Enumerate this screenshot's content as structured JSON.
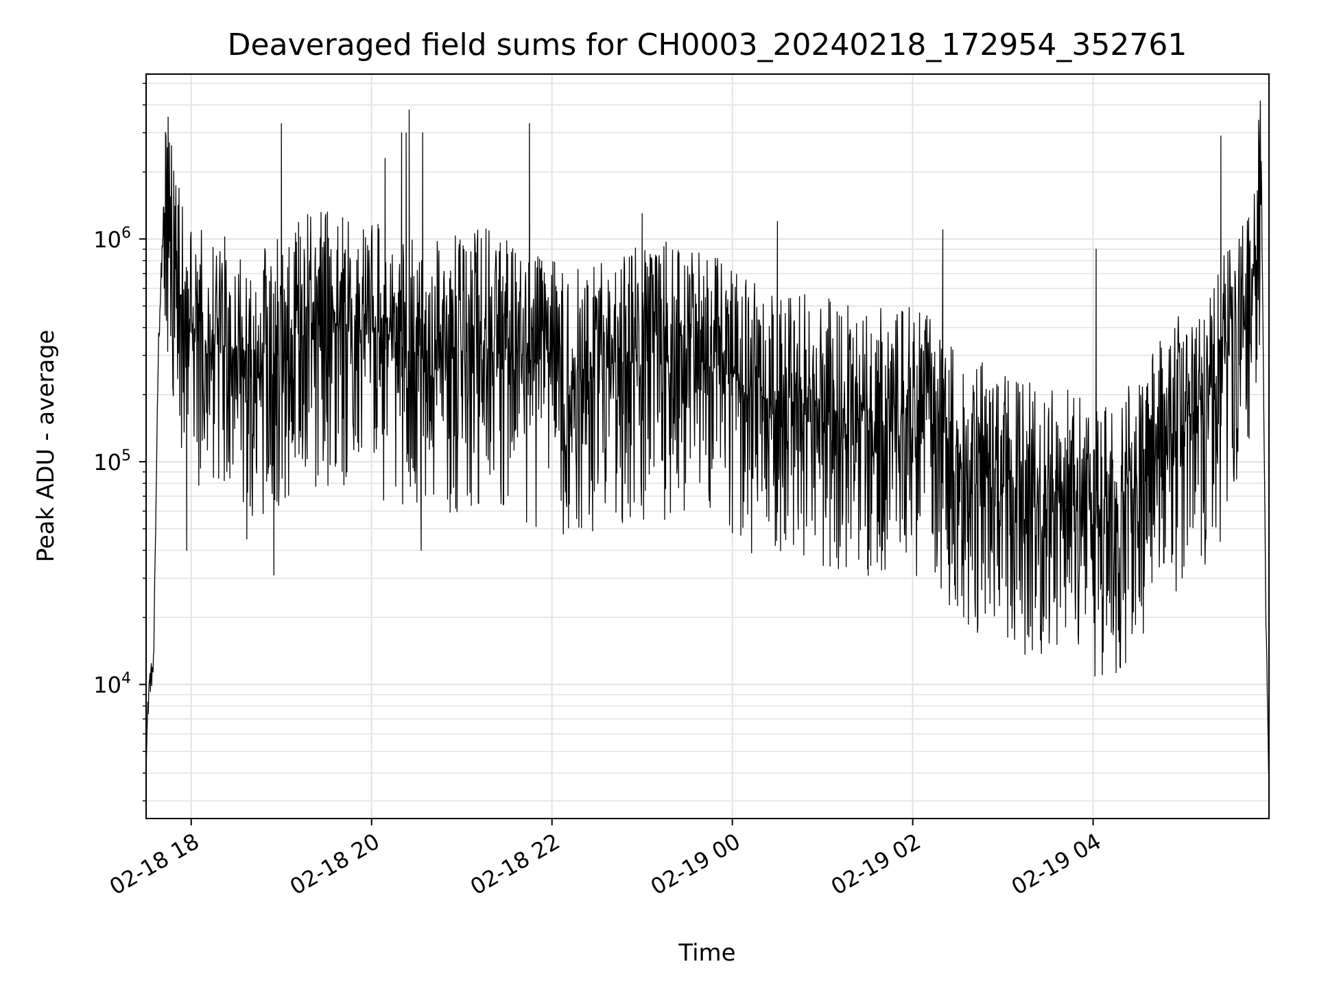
{
  "chart_data": {
    "type": "line",
    "title": "Deaveraged field sums for CH0003_20240218_172954_352761",
    "xlabel": "Time",
    "ylabel": "Peak ADU - average",
    "y_scale": "log",
    "ylim": [
      2500,
      5500000
    ],
    "xlim": [
      "2024-02-18 17:30",
      "2024-02-19 05:57"
    ],
    "x_ticks": [
      "02-18 18",
      "02-18 20",
      "02-18 22",
      "02-19 00",
      "02-19 02",
      "02-19 04"
    ],
    "x_tick_times": [
      "2024-02-18 18:00",
      "2024-02-18 20:00",
      "2024-02-18 22:00",
      "2024-02-19 00:00",
      "2024-02-19 02:00",
      "2024-02-19 04:00"
    ],
    "y_ticks": [
      {
        "base": "10",
        "exp": "4",
        "value": 10000
      },
      {
        "base": "10",
        "exp": "5",
        "value": 100000
      },
      {
        "base": "10",
        "exp": "6",
        "value": 1000000
      }
    ],
    "grid": true,
    "line_color": "#000000",
    "series": [
      {
        "x": [
          "2024-02-18 17:30",
          "2024-02-18 17:32",
          "2024-02-18 17:35",
          "2024-02-18 17:38",
          "2024-02-18 17:42",
          "2024-02-18 17:45",
          "2024-02-18 17:48",
          "2024-02-18 17:52",
          "2024-02-18 17:56",
          "2024-02-18 18:00",
          "2024-02-18 18:10",
          "2024-02-18 18:20",
          "2024-02-18 18:30",
          "2024-02-18 18:45",
          "2024-02-18 19:00",
          "2024-02-18 19:15",
          "2024-02-18 19:30",
          "2024-02-18 19:45",
          "2024-02-18 20:00",
          "2024-02-18 20:15",
          "2024-02-18 20:30",
          "2024-02-18 20:45",
          "2024-02-18 21:00",
          "2024-02-18 21:15",
          "2024-02-18 21:30",
          "2024-02-18 21:45",
          "2024-02-18 22:00",
          "2024-02-18 22:15",
          "2024-02-18 22:30",
          "2024-02-18 22:45",
          "2024-02-18 23:00",
          "2024-02-18 23:15",
          "2024-02-18 23:30",
          "2024-02-18 23:45",
          "2024-02-19 00:00",
          "2024-02-19 00:15",
          "2024-02-19 00:30",
          "2024-02-19 00:45",
          "2024-02-19 01:00",
          "2024-02-19 01:15",
          "2024-02-19 01:30",
          "2024-02-19 01:45",
          "2024-02-19 02:00",
          "2024-02-19 02:15",
          "2024-02-19 02:30",
          "2024-02-19 02:45",
          "2024-02-19 03:00",
          "2024-02-19 03:15",
          "2024-02-19 03:30",
          "2024-02-19 03:45",
          "2024-02-19 04:00",
          "2024-02-19 04:15",
          "2024-02-19 04:30",
          "2024-02-19 04:45",
          "2024-02-19 05:00",
          "2024-02-19 05:10",
          "2024-02-19 05:20",
          "2024-02-19 05:30",
          "2024-02-19 05:40",
          "2024-02-19 05:48",
          "2024-02-19 05:52",
          "2024-02-19 05:55",
          "2024-02-19 05:57"
        ],
        "values": [
          5000,
          10000,
          12000,
          300000,
          1500000,
          1200000,
          900000,
          600000,
          400000,
          380000,
          350000,
          320000,
          330000,
          300000,
          320000,
          400000,
          420000,
          400000,
          380000,
          350000,
          300000,
          320000,
          330000,
          350000,
          320000,
          280000,
          260000,
          240000,
          250000,
          280000,
          300000,
          320000,
          300000,
          270000,
          240000,
          200000,
          190000,
          190000,
          180000,
          160000,
          150000,
          160000,
          170000,
          140000,
          100000,
          90000,
          80000,
          75000,
          70000,
          65000,
          55000,
          60000,
          80000,
          120000,
          150000,
          180000,
          200000,
          300000,
          400000,
          700000,
          1800000,
          20000,
          3500
        ]
      }
    ],
    "noise": {
      "low": 0.15,
      "high": 3.2
    },
    "spikes": [
      {
        "x": "2024-02-18 17:47",
        "value": 1800000
      },
      {
        "x": "2024-02-18 19:00",
        "value": 3300000
      },
      {
        "x": "2024-02-18 20:09",
        "value": 2300000
      },
      {
        "x": "2024-02-18 20:20",
        "value": 3000000
      },
      {
        "x": "2024-02-18 20:23",
        "value": 3000000
      },
      {
        "x": "2024-02-18 20:25",
        "value": 3800000
      },
      {
        "x": "2024-02-18 20:34",
        "value": 3000000
      },
      {
        "x": "2024-02-18 21:45",
        "value": 3300000
      },
      {
        "x": "2024-02-18 23:00",
        "value": 1300000
      },
      {
        "x": "2024-02-19 00:30",
        "value": 1200000
      },
      {
        "x": "2024-02-19 02:20",
        "value": 1100000
      },
      {
        "x": "2024-02-19 04:02",
        "value": 900000
      },
      {
        "x": "2024-02-19 05:25",
        "value": 2900000
      },
      {
        "x": "2024-02-19 05:51",
        "value": 2700000
      }
    ],
    "dips": [
      {
        "x": "2024-02-18 17:57",
        "value": 40000
      },
      {
        "x": "2024-02-18 18:37",
        "value": 45000
      },
      {
        "x": "2024-02-18 18:55",
        "value": 31000
      },
      {
        "x": "2024-02-18 20:33",
        "value": 40000
      },
      {
        "x": "2024-02-18 23:15",
        "value": 55000
      },
      {
        "x": "2024-02-19 00:00",
        "value": 48000
      },
      {
        "x": "2024-02-19 01:05",
        "value": 34000
      },
      {
        "x": "2024-02-19 01:30",
        "value": 33000
      },
      {
        "x": "2024-02-19 02:47",
        "value": 35000
      },
      {
        "x": "2024-02-19 04:00",
        "value": 25000
      },
      {
        "x": "2024-02-19 04:20",
        "value": 24000
      },
      {
        "x": "2024-02-19 05:12",
        "value": 38000
      },
      {
        "x": "2024-02-19 05:57",
        "value": 3400
      }
    ]
  }
}
